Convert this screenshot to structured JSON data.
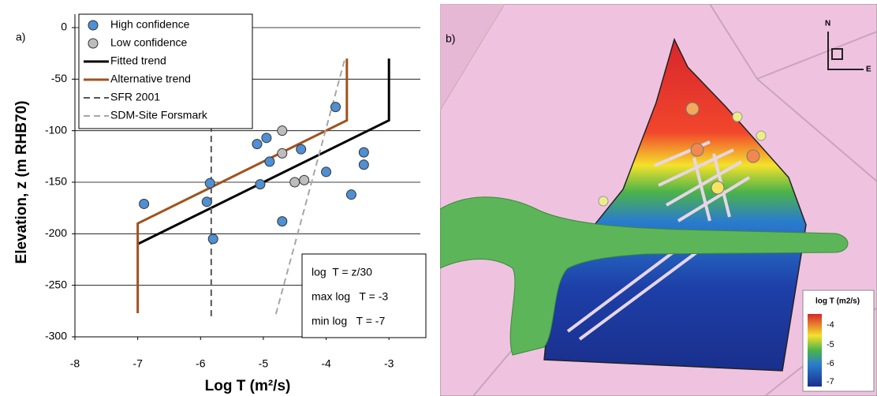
{
  "chart_data": {
    "type": "scatter",
    "panel_label": "a)",
    "x_label": "Log T (m²/s)",
    "y_label": "Elevation, z (m RHB70)",
    "xlim": [
      -8,
      -2.5
    ],
    "xticks": [
      -8,
      -7,
      -6,
      -5,
      -4,
      -3
    ],
    "ylim": [
      -300,
      0
    ],
    "yticks": [
      0,
      -50,
      -100,
      -150,
      -200,
      -250,
      -300
    ],
    "grid": true,
    "legend": "upper left",
    "series": [
      {
        "name": "High confidence",
        "type": "scatter",
        "color": "#4f8fd3",
        "x": [
          -6.9,
          -5.85,
          -5.9,
          -5.8,
          -5.1,
          -4.95,
          -4.9,
          -5.05,
          -4.4,
          -4.7,
          -3.85,
          -4.0,
          -3.4,
          -3.4,
          -3.6
        ],
        "values": [
          -171,
          -151,
          -169,
          -205,
          -113,
          -107,
          -130,
          -152,
          -118,
          -188,
          -77,
          -140,
          -121,
          -133,
          -162
        ]
      },
      {
        "name": "Low confidence",
        "type": "scatter",
        "color": "#bdbdbd",
        "x": [
          -4.7,
          -4.7,
          -4.5,
          -4.35
        ],
        "values": [
          -100,
          -122,
          -150,
          -148
        ]
      },
      {
        "name": "Fitted trend",
        "type": "line",
        "color": "#000000",
        "dash": false,
        "x": [
          -7,
          -3,
          -3
        ],
        "values": [
          -210,
          -90,
          -30
        ]
      },
      {
        "name": "Alternative trend",
        "type": "line",
        "color": "#a0521d",
        "dash": false,
        "x": [
          -7,
          -7,
          -3.67,
          -3.67
        ],
        "values": [
          -277,
          -190,
          -90,
          -30
        ]
      },
      {
        "name": "SFR 2001",
        "type": "line",
        "color": "#555555",
        "dash": true,
        "x": [
          -5.83,
          -5.83
        ],
        "values": [
          -95,
          -280
        ]
      },
      {
        "name": "SDM-Site Forsmark",
        "type": "line",
        "color": "#a6a6a6",
        "dash": true,
        "x": [
          -4.8,
          -3.7
        ],
        "values": [
          -278,
          -30
        ]
      }
    ],
    "annotations": [
      "log  T = z/30",
      "max log   T = -3",
      "min log   T = -7"
    ]
  },
  "map": {
    "panel_label": "b)",
    "north": "N",
    "east": "E",
    "legend_title": "log T (m2/s)",
    "legend_labels": [
      "-4",
      "-5",
      "-6",
      "-7"
    ]
  }
}
